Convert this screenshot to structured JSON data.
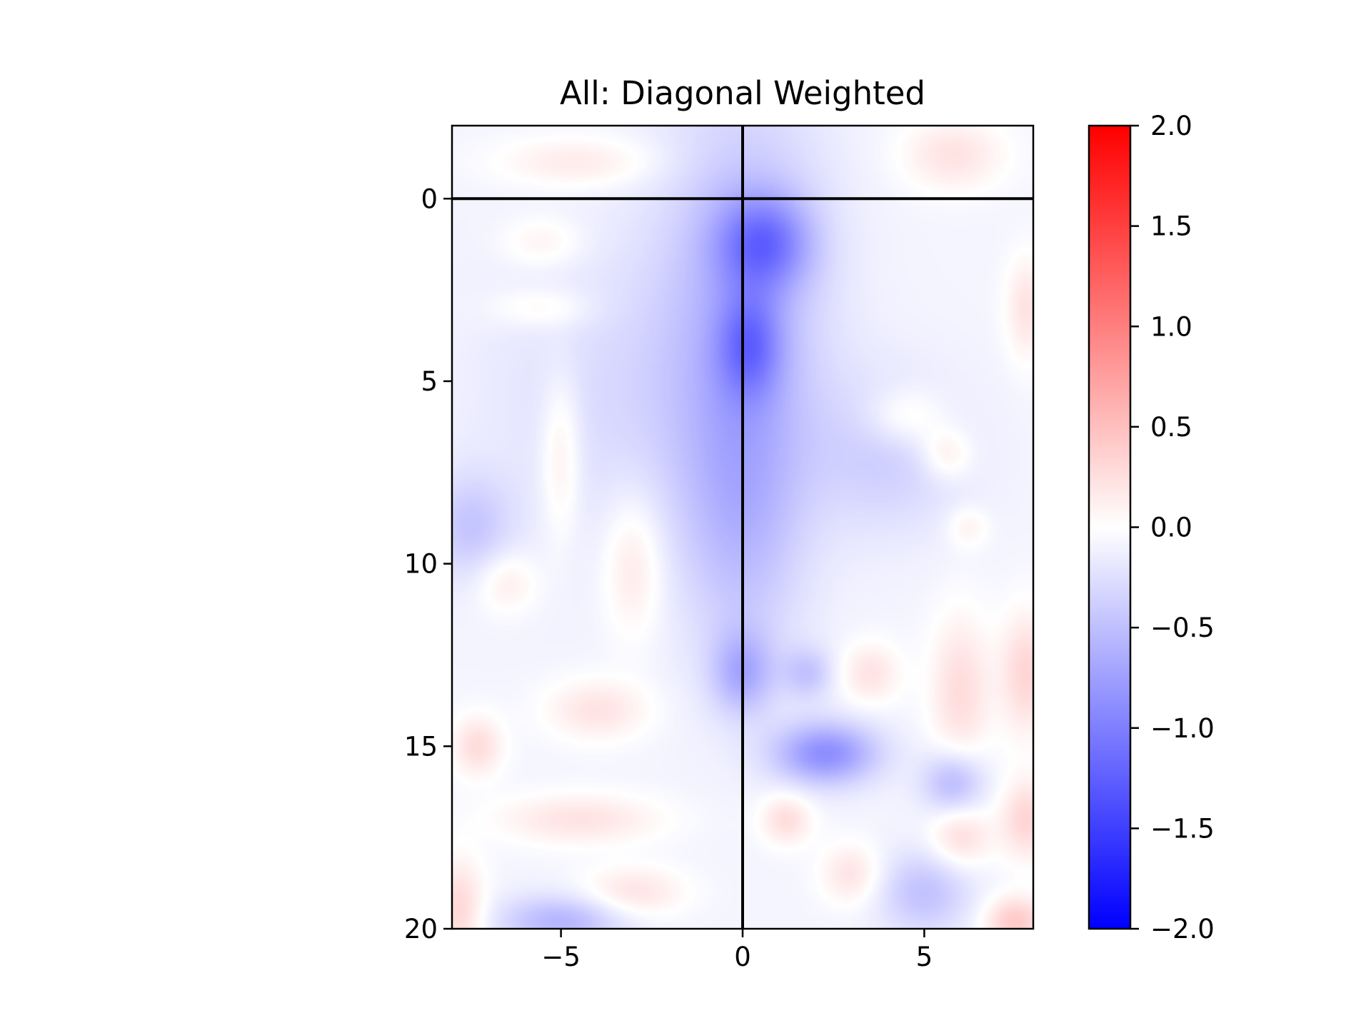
{
  "chart_data": {
    "type": "heatmap",
    "title": "All: Diagonal Weighted",
    "xlabel": "",
    "ylabel": "",
    "xlim": [
      -8,
      8
    ],
    "ylim": [
      20,
      -2
    ],
    "x_ticks": [
      -5,
      0,
      5
    ],
    "x_tick_labels": [
      "−5",
      "0",
      "5"
    ],
    "y_ticks": [
      0,
      5,
      10,
      15,
      20
    ],
    "y_tick_labels": [
      "0",
      "5",
      "10",
      "15",
      "20"
    ],
    "reference_lines": {
      "vertical_x": 0,
      "horizontal_y": 0
    },
    "colormap": "bwr",
    "colors": {
      "low": "#0000ff",
      "mid": "#ffffff",
      "high": "#ff0000"
    },
    "colorbar": {
      "vmin": -2.0,
      "vmax": 2.0,
      "ticks": [
        2.0,
        1.5,
        1.0,
        0.5,
        0.0,
        -0.5,
        -1.0,
        -1.5,
        -2.0
      ],
      "tick_labels": [
        "2.0",
        "1.5",
        "1.0",
        "0.5",
        "0.0",
        "−0.5",
        "−1.0",
        "−1.5",
        "−2.0"
      ]
    },
    "blobs": [
      {
        "x": 0.6,
        "y": 1.2,
        "value": -0.75,
        "sx": 0.9,
        "sy": 0.9
      },
      {
        "x": 0.0,
        "y": 2.5,
        "value": -0.45,
        "sx": 1.6,
        "sy": 4.0
      },
      {
        "x": 0.2,
        "y": 4.0,
        "value": -0.6,
        "sx": 0.6,
        "sy": 1.0
      },
      {
        "x": 0.0,
        "y": 8.5,
        "value": -0.4,
        "sx": 1.2,
        "sy": 3.0
      },
      {
        "x": 0.0,
        "y": 13.0,
        "value": -0.5,
        "sx": 0.6,
        "sy": 0.8
      },
      {
        "x": 2.3,
        "y": 15.2,
        "value": -0.8,
        "sx": 1.0,
        "sy": 0.6
      },
      {
        "x": 5.8,
        "y": 16.0,
        "value": -0.5,
        "sx": 0.6,
        "sy": 0.6
      },
      {
        "x": 5.0,
        "y": 19.0,
        "value": -0.4,
        "sx": 0.9,
        "sy": 0.8
      },
      {
        "x": -5.0,
        "y": 19.8,
        "value": -0.5,
        "sx": 1.2,
        "sy": 0.5
      },
      {
        "x": -7.5,
        "y": 9.0,
        "value": -0.35,
        "sx": 0.8,
        "sy": 1.0
      },
      {
        "x": 1.8,
        "y": 13.0,
        "value": -0.35,
        "sx": 0.5,
        "sy": 0.5
      },
      {
        "x": 4.0,
        "y": 7.0,
        "value": -0.3,
        "sx": 1.5,
        "sy": 1.5
      },
      {
        "x": -3.5,
        "y": 5.5,
        "value": -0.2,
        "sx": 2.5,
        "sy": 3.0
      },
      {
        "x": -5.5,
        "y": 1.2,
        "value": 0.2,
        "sx": 0.8,
        "sy": 0.5
      },
      {
        "x": -4.5,
        "y": -1.0,
        "value": 0.25,
        "sx": 1.6,
        "sy": 0.5
      },
      {
        "x": 5.8,
        "y": -1.2,
        "value": 0.3,
        "sx": 1.0,
        "sy": 0.7
      },
      {
        "x": -5.5,
        "y": 3.0,
        "value": 0.2,
        "sx": 1.0,
        "sy": 0.4
      },
      {
        "x": -5.0,
        "y": 7.0,
        "value": 0.3,
        "sx": 0.4,
        "sy": 1.6
      },
      {
        "x": -3.0,
        "y": 10.0,
        "value": 0.3,
        "sx": 0.6,
        "sy": 1.4
      },
      {
        "x": -6.5,
        "y": 10.5,
        "value": 0.25,
        "sx": 0.6,
        "sy": 0.6
      },
      {
        "x": -4.0,
        "y": 14.0,
        "value": 0.3,
        "sx": 1.0,
        "sy": 0.6
      },
      {
        "x": -7.3,
        "y": 15.0,
        "value": 0.35,
        "sx": 0.5,
        "sy": 0.6
      },
      {
        "x": -4.5,
        "y": 17.0,
        "value": 0.3,
        "sx": 1.6,
        "sy": 0.5
      },
      {
        "x": -3.0,
        "y": 19.0,
        "value": 0.3,
        "sx": 1.0,
        "sy": 0.5
      },
      {
        "x": -7.8,
        "y": 19.5,
        "value": 0.4,
        "sx": 0.5,
        "sy": 1.0
      },
      {
        "x": 1.2,
        "y": 17.0,
        "value": 0.35,
        "sx": 0.5,
        "sy": 0.5
      },
      {
        "x": 4.5,
        "y": 6.0,
        "value": 0.3,
        "sx": 0.8,
        "sy": 0.6
      },
      {
        "x": 5.6,
        "y": 7.0,
        "value": 0.3,
        "sx": 0.5,
        "sy": 0.5
      },
      {
        "x": 3.5,
        "y": 13.0,
        "value": 0.3,
        "sx": 0.6,
        "sy": 0.6
      },
      {
        "x": 6.0,
        "y": 13.5,
        "value": 0.35,
        "sx": 0.6,
        "sy": 1.5
      },
      {
        "x": 7.8,
        "y": 13.0,
        "value": 0.4,
        "sx": 0.5,
        "sy": 1.2
      },
      {
        "x": 7.8,
        "y": 17.0,
        "value": 0.4,
        "sx": 0.5,
        "sy": 0.8
      },
      {
        "x": 6.0,
        "y": 17.5,
        "value": 0.35,
        "sx": 0.6,
        "sy": 0.6
      },
      {
        "x": 3.0,
        "y": 18.5,
        "value": 0.3,
        "sx": 0.6,
        "sy": 0.6
      },
      {
        "x": 7.5,
        "y": 19.8,
        "value": 0.5,
        "sx": 0.6,
        "sy": 0.5
      },
      {
        "x": 7.8,
        "y": 3.0,
        "value": 0.3,
        "sx": 0.4,
        "sy": 1.0
      },
      {
        "x": 6.2,
        "y": 9.0,
        "value": 0.2,
        "sx": 0.4,
        "sy": 0.4
      }
    ]
  }
}
